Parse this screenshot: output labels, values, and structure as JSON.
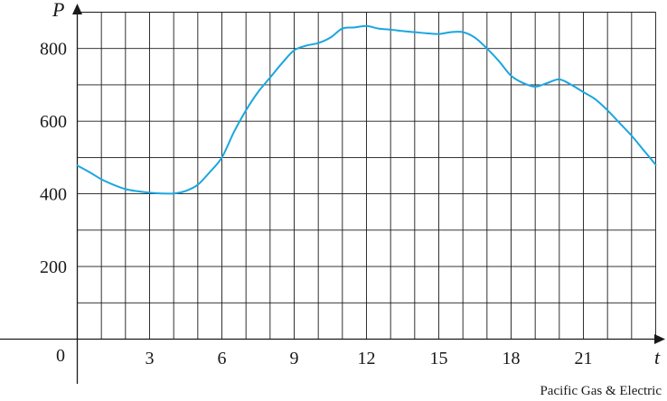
{
  "chart_data": {
    "type": "line",
    "xlabel": "t",
    "ylabel": "P",
    "origin_label": "0",
    "xlim": [
      0,
      24
    ],
    "ylim": [
      0,
      900
    ],
    "x_ticks": [
      3,
      6,
      9,
      12,
      15,
      18,
      21
    ],
    "y_ticks": [
      200,
      400,
      600,
      800
    ],
    "x_grid_step": 1,
    "y_grid_step": 100,
    "grid": true,
    "line_color": "#1aa6e0",
    "series": [
      {
        "x": [
          0,
          0.5,
          1,
          1.5,
          2,
          2.5,
          3,
          3.5,
          4,
          4.5,
          5,
          5.5,
          6,
          6.5,
          7,
          7.5,
          8,
          8.5,
          9,
          9.5,
          10,
          10.5,
          11,
          11.5,
          12,
          12.5,
          13,
          13.5,
          14,
          14.5,
          15,
          15.5,
          16,
          16.5,
          17,
          17.5,
          18,
          18.5,
          19,
          19.5,
          20,
          20.5,
          21,
          21.5,
          22,
          22.5,
          23,
          23.5,
          24
        ],
        "y": [
          478,
          460,
          440,
          425,
          413,
          407,
          403,
          401,
          401,
          408,
          425,
          460,
          500,
          570,
          630,
          680,
          720,
          760,
          795,
          808,
          815,
          830,
          855,
          858,
          862,
          855,
          852,
          848,
          845,
          842,
          840,
          845,
          845,
          830,
          800,
          765,
          725,
          705,
          695,
          705,
          715,
          700,
          680,
          660,
          630,
          595,
          560,
          520,
          480
        ]
      }
    ]
  },
  "source_credit": "Pacific Gas & Electric"
}
